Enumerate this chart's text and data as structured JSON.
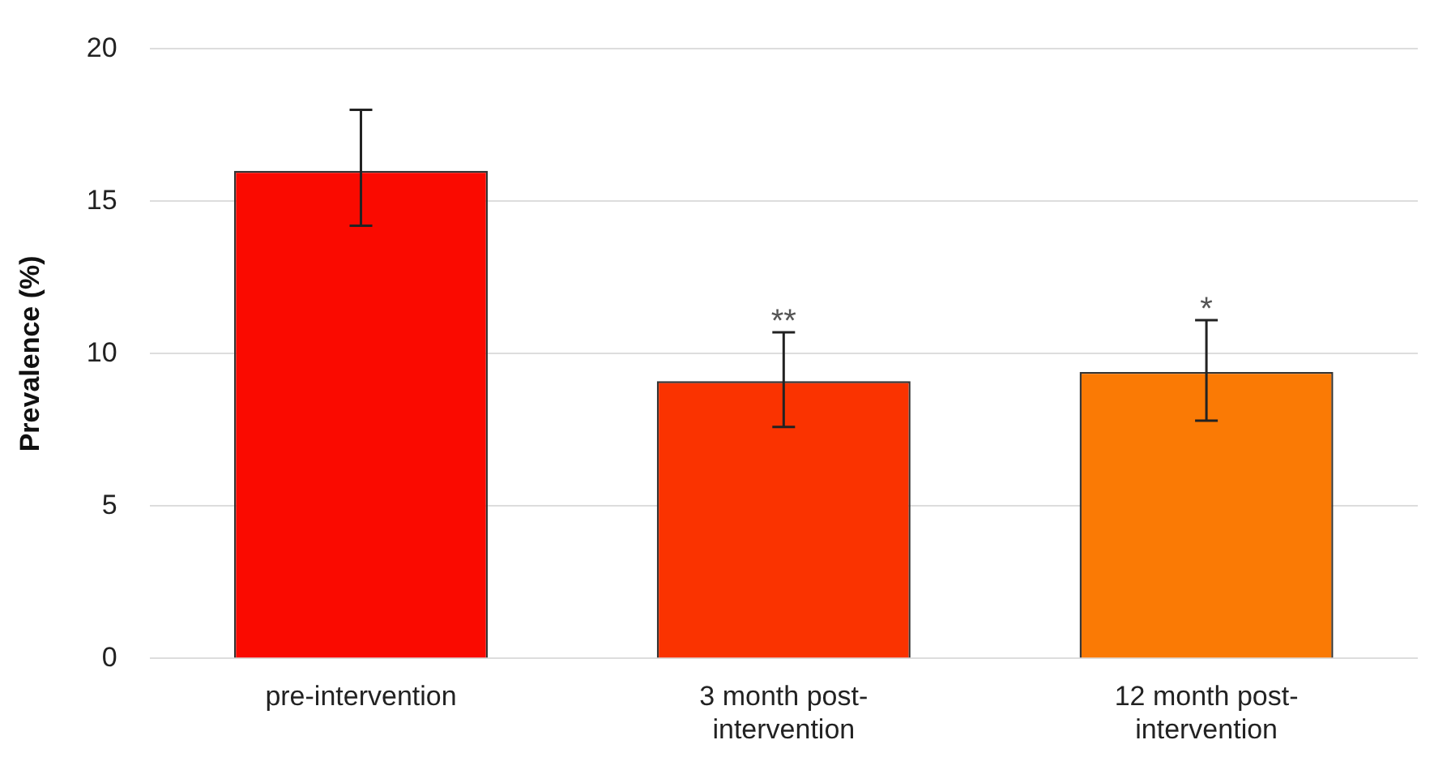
{
  "chart_data": {
    "type": "bar",
    "ylabel": "Prevalence (%)",
    "categories": [
      "pre-intervention",
      "3 month post-intervention",
      "12 month post-intervention"
    ],
    "values": [
      16.0,
      9.1,
      9.4
    ],
    "colors": [
      "#fa0a00",
      "#fa3300",
      "#fa7a05"
    ],
    "errors": [
      [
        14.2,
        18.0
      ],
      [
        7.6,
        10.7
      ],
      [
        7.8,
        11.1
      ]
    ],
    "ylim": [
      0,
      20
    ],
    "yticks": [
      0,
      5,
      10,
      15,
      20
    ],
    "grid": "y",
    "annotations": [
      {
        "text": "**",
        "x": "3 month post-intervention",
        "y": 10.7
      },
      {
        "text": "*",
        "x": "12 month post-intervention",
        "y": 11.1
      }
    ]
  }
}
